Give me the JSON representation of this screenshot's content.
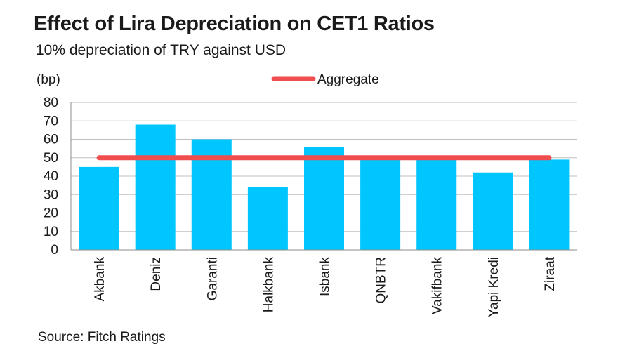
{
  "chart_data": {
    "type": "bar",
    "title": "Effect of Lira Depreciation on CET1 Ratios",
    "subtitle": "10% depreciation of TRY against USD",
    "ylabel": "(bp)",
    "xlabel": "",
    "categories": [
      "Akbank",
      "Deniz",
      "Garanti",
      "Halkbank",
      "Isbank",
      "QNBTR",
      "Vakifbank",
      "Yapi Kredi",
      "Ziraat"
    ],
    "series": [
      {
        "name": "",
        "type": "bar",
        "color": "#00c6ff",
        "values": [
          45,
          68,
          60,
          34,
          56,
          49,
          49,
          42,
          49
        ]
      },
      {
        "name": "Aggregate",
        "type": "line",
        "color": "#f04e4e",
        "values": [
          50,
          50,
          50,
          50,
          50,
          50,
          50,
          50,
          50
        ]
      }
    ],
    "ylim": [
      0,
      80
    ],
    "yticks": [
      0,
      10,
      20,
      30,
      40,
      50,
      60,
      70,
      80
    ],
    "grid": true,
    "legend_position": "top-center",
    "source": "Source: Fitch Ratings"
  }
}
